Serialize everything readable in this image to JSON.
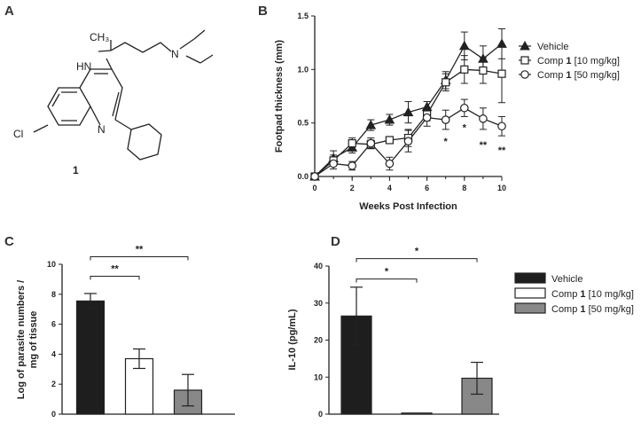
{
  "panels": {
    "a": "A",
    "b": "B",
    "c": "C",
    "d": "D"
  },
  "compound": {
    "number": "1",
    "atoms": {
      "hn": "HN",
      "n_amine": "N",
      "n_ring": "N",
      "cl": "Cl"
    }
  },
  "chart_data": [
    {
      "type": "line",
      "panel": "B",
      "xlabel": "Weeks Post Infection",
      "ylabel": "Footpad thickness (mm)",
      "xlim": [
        0,
        10
      ],
      "ylim": [
        0,
        1.5
      ],
      "xticks": [
        "0",
        "2",
        "4",
        "6",
        "8",
        "10"
      ],
      "yticks": [
        "0.0",
        "0.5",
        "1.0",
        "1.5"
      ],
      "x": [
        0,
        1,
        2,
        3,
        4,
        5,
        6,
        7,
        8,
        9,
        10
      ],
      "series": [
        {
          "name": "Vehicle",
          "marker": "triangle",
          "values": [
            0.0,
            0.17,
            0.27,
            0.48,
            0.53,
            0.6,
            0.65,
            0.9,
            1.22,
            1.1,
            1.24
          ],
          "errors": [
            0.02,
            0.07,
            0.05,
            0.05,
            0.05,
            0.1,
            0.05,
            0.08,
            0.13,
            0.12,
            0.14
          ]
        },
        {
          "name": "Comp 1 [10 mg/kg]",
          "marker": "square",
          "values": [
            0.0,
            0.15,
            0.31,
            0.3,
            0.34,
            0.36,
            0.58,
            0.88,
            1.0,
            0.99,
            0.96
          ],
          "errors": [
            0.02,
            0.05,
            0.05,
            0.04,
            0.03,
            0.08,
            0.06,
            0.08,
            0.13,
            0.12,
            0.27
          ]
        },
        {
          "name": "Comp 1 [50 mg/kg]",
          "marker": "circle",
          "values": [
            0.0,
            0.12,
            0.1,
            0.31,
            0.12,
            0.33,
            0.55,
            0.53,
            0.64,
            0.54,
            0.47
          ],
          "errors": [
            0.02,
            0.05,
            0.04,
            0.05,
            0.06,
            0.1,
            0.08,
            0.09,
            0.08,
            0.1,
            0.09
          ]
        }
      ],
      "annotations": [
        {
          "x": 7,
          "y": 0.33,
          "text": "*"
        },
        {
          "x": 8,
          "y": 0.46,
          "text": "*"
        },
        {
          "x": 9,
          "y": 0.3,
          "text": "**"
        },
        {
          "x": 10,
          "y": 0.25,
          "text": "**"
        }
      ],
      "legend": [
        {
          "label_pre": "Vehicle",
          "bold": "",
          "label_post": "",
          "marker": "triangle"
        },
        {
          "label_pre": "Comp ",
          "bold": "1",
          "label_post": " [10 mg/kg]",
          "marker": "square"
        },
        {
          "label_pre": "Comp ",
          "bold": "1",
          "label_post": " [50 mg/kg]",
          "marker": "circle"
        }
      ]
    },
    {
      "type": "bar",
      "panel": "C",
      "ylabel": [
        "Log of parasite numbers /",
        "mg of tissue"
      ],
      "ylim": [
        0,
        10
      ],
      "yticks": [
        "0",
        "2",
        "4",
        "6",
        "8",
        "10"
      ],
      "categories": [
        "Vehicle",
        "Comp 1 [10 mg/kg]",
        "Comp 1 [50 mg/kg]"
      ],
      "values": [
        7.55,
        3.7,
        1.6
      ],
      "errors": [
        0.5,
        0.65,
        1.05
      ],
      "colors": [
        "#1e1e1e",
        "#ffffff",
        "#888888"
      ],
      "significance": [
        {
          "from": 0,
          "to": 1,
          "y": 9.2,
          "text": "**"
        },
        {
          "from": 0,
          "to": 2,
          "y": 10.5,
          "text": "**"
        }
      ]
    },
    {
      "type": "bar",
      "panel": "D",
      "ylabel": "IL-10 (pg/mL)",
      "ylim": [
        0,
        40
      ],
      "yticks": [
        "0",
        "10",
        "20",
        "30",
        "40"
      ],
      "categories": [
        "Vehicle",
        "Comp 1 [10 mg/kg]",
        "Comp 1 [50 mg/kg]"
      ],
      "values": [
        26.5,
        0.3,
        9.7
      ],
      "errors": [
        7.8,
        0.0,
        4.3
      ],
      "colors": [
        "#1e1e1e",
        "#ffffff",
        "#888888"
      ],
      "significance": [
        {
          "from": 0,
          "to": 1,
          "y": 36.5,
          "text": "*"
        },
        {
          "from": 0,
          "to": 2,
          "y": 42.0,
          "text": "*"
        }
      ],
      "legend": [
        {
          "label_pre": "Vehicle",
          "bold": "",
          "label_post": "",
          "color": "#1e1e1e"
        },
        {
          "label_pre": "Comp ",
          "bold": "1",
          "label_post": "  [10 mg/kg]",
          "color": "#ffffff"
        },
        {
          "label_pre": "Comp ",
          "bold": "1",
          "label_post": "  [50 mg/kg]",
          "color": "#888888"
        }
      ]
    }
  ]
}
